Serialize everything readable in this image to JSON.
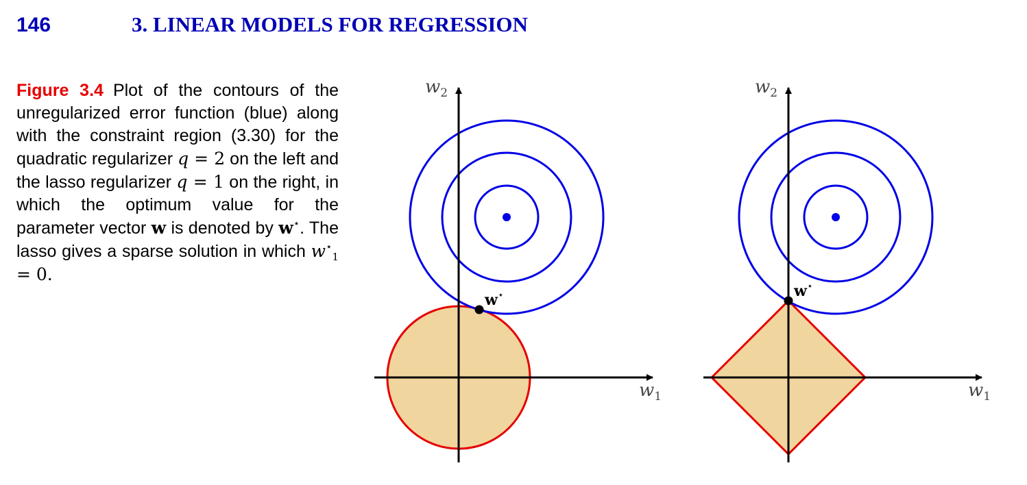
{
  "header": {
    "page_number": "146",
    "chapter_title": "3. LINEAR MODELS FOR REGRESSION"
  },
  "caption": {
    "figure_label": "Figure 3.4",
    "part1": "Plot of the contours of the unregularized error function (blue) along with the constraint region (3.30) for the quadratic regularizer ",
    "q_var": "q",
    "eq_2": " = 2",
    "part2": " on the left and the lasso regularizer ",
    "eq_1": " = 1",
    "part3": " on the right, in which the optimum value for the parameter vector ",
    "w_vec": "w",
    "part4": " is denoted by ",
    "w_star_base": "w",
    "star": "⋆",
    "part5": ". The lasso gives a sparse solution in which ",
    "w1_var": "w",
    "w1_sub": "1",
    "w1_eq": " = 0."
  },
  "figure": {
    "left_panel": {
      "x_axis_label_base": "w",
      "x_axis_label_sub": "1",
      "y_axis_label_base": "w",
      "y_axis_label_sub": "2",
      "optimum_label_base": "w",
      "optimum_label_star": "⋆",
      "constraint_shape": "circle"
    },
    "right_panel": {
      "x_axis_label_base": "w",
      "x_axis_label_sub": "1",
      "y_axis_label_base": "w",
      "y_axis_label_sub": "2",
      "optimum_label_base": "w",
      "optimum_label_star": "⋆",
      "constraint_shape": "diamond"
    },
    "colors": {
      "contour": "#0000e6",
      "constraint_edge": "#e60000",
      "constraint_fill": "#f0d59e",
      "axis": "#000000"
    }
  }
}
